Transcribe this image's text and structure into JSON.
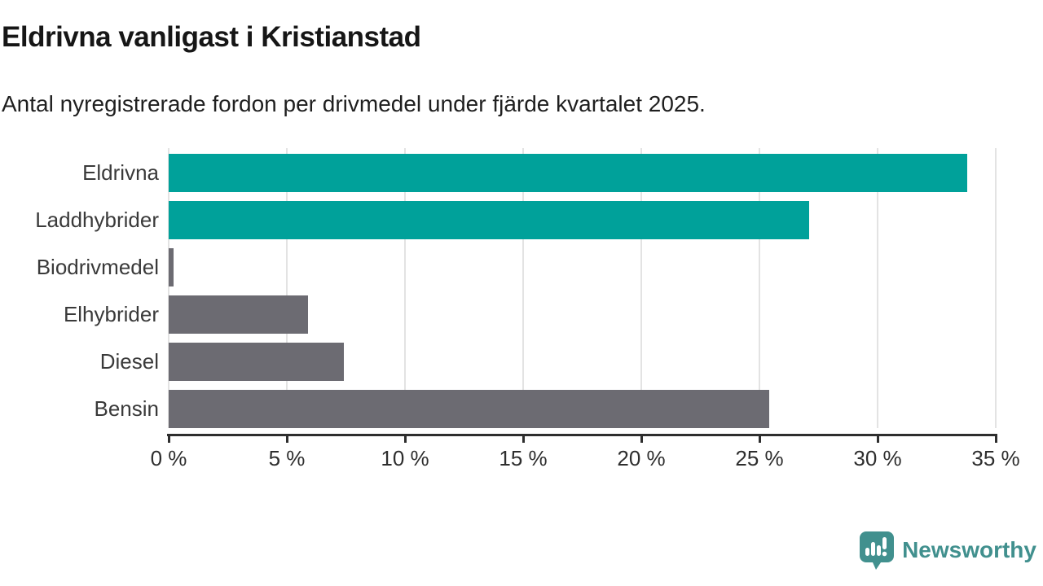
{
  "header": {
    "title": "Eldrivna vanligast i Kristianstad",
    "subtitle": "Antal nyregistrerade fordon per drivmedel under fjärde kvartalet 2025."
  },
  "chart_data": {
    "type": "bar",
    "orientation": "horizontal",
    "title": "Eldrivna vanligast i Kristianstad",
    "subtitle": "Antal nyregistrerade fordon per drivmedel under fjärde kvartalet 2025.",
    "categories": [
      "Eldrivna",
      "Laddhybrider",
      "Biodrivmedel",
      "Elhybrider",
      "Diesel",
      "Bensin"
    ],
    "values": [
      33.8,
      27.1,
      0.2,
      5.9,
      7.4,
      25.4
    ],
    "bar_colors": [
      "#00a19a",
      "#00a19a",
      "#6c6b72",
      "#6c6b72",
      "#6c6b72",
      "#6c6b72"
    ],
    "xlabel": "",
    "ylabel": "",
    "x_axis": {
      "min": 0,
      "max": 35,
      "step": 5,
      "tick_labels": [
        "0 %",
        "5 %",
        "10 %",
        "15 %",
        "20 %",
        "25 %",
        "30 %",
        "35 %"
      ]
    },
    "grid": true,
    "legend": false
  },
  "colors": {
    "accent_teal": "#00a19a",
    "neutral_gray": "#6c6b72",
    "gridline": "#e3e3e3",
    "axis": "#2e2e2e",
    "logo_teal": "#41908e"
  },
  "footer": {
    "brand": "Newsworthy"
  }
}
